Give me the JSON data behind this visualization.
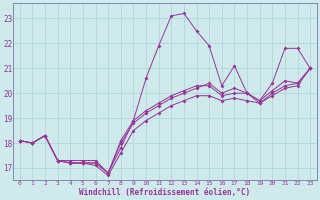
{
  "xlabel": "Windchill (Refroidissement éolien,°C)",
  "background_color": "#ceeaea",
  "line_color": "#993399",
  "grid_color": "#b0d8d8",
  "x_hours": [
    0,
    1,
    2,
    3,
    4,
    5,
    6,
    7,
    8,
    9,
    10,
    11,
    12,
    13,
    14,
    15,
    16,
    17,
    18,
    19,
    20,
    21,
    22,
    23
  ],
  "series": [
    [
      18.1,
      18.0,
      18.3,
      17.3,
      17.2,
      17.2,
      17.1,
      16.7,
      17.6,
      18.5,
      18.9,
      19.2,
      19.5,
      19.7,
      19.9,
      19.9,
      19.7,
      19.8,
      19.7,
      19.6,
      19.9,
      20.2,
      20.3,
      21.0
    ],
    [
      18.1,
      18.0,
      18.3,
      17.3,
      17.2,
      17.2,
      17.2,
      16.8,
      18.0,
      18.8,
      19.2,
      19.5,
      19.8,
      20.0,
      20.2,
      20.4,
      20.0,
      20.2,
      20.0,
      19.7,
      20.1,
      20.5,
      20.4,
      21.0
    ],
    [
      18.1,
      18.0,
      18.3,
      17.3,
      17.2,
      17.2,
      17.2,
      16.8,
      18.1,
      18.9,
      19.3,
      19.6,
      19.9,
      20.1,
      20.3,
      20.3,
      19.9,
      20.0,
      20.0,
      19.6,
      20.0,
      20.3,
      20.4,
      21.0
    ],
    [
      18.1,
      18.0,
      18.3,
      17.3,
      17.3,
      17.3,
      17.3,
      16.8,
      17.8,
      18.9,
      20.6,
      21.9,
      23.1,
      23.2,
      22.5,
      21.9,
      20.3,
      21.1,
      20.0,
      19.7,
      20.4,
      21.8,
      21.8,
      21.0
    ]
  ],
  "ylim": [
    16.5,
    23.6
  ],
  "xlim": [
    -0.5,
    23.5
  ],
  "yticks": [
    17,
    18,
    19,
    20,
    21,
    22,
    23
  ],
  "xticks": [
    0,
    1,
    2,
    3,
    4,
    5,
    6,
    7,
    8,
    9,
    10,
    11,
    12,
    13,
    14,
    15,
    16,
    17,
    18,
    19,
    20,
    21,
    22,
    23
  ],
  "xtick_labels": [
    "0",
    "1",
    "2",
    "3",
    "4",
    "5",
    "6",
    "7",
    "8",
    "9",
    "10",
    "11",
    "12",
    "13",
    "14",
    "15",
    "16",
    "17",
    "18",
    "19",
    "20",
    "21",
    "22",
    "23"
  ]
}
